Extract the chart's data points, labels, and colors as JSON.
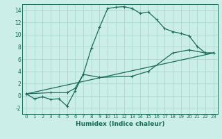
{
  "xlabel": "Humidex (Indice chaleur)",
  "bg_color": "#cceee8",
  "line_color": "#1a6b5a",
  "grid_color": "#aad8d0",
  "xlim": [
    -0.5,
    23.5
  ],
  "ylim": [
    -3,
    15
  ],
  "yticks": [
    -2,
    0,
    2,
    4,
    6,
    8,
    10,
    12,
    14
  ],
  "xticks": [
    0,
    1,
    2,
    3,
    4,
    5,
    6,
    7,
    8,
    9,
    10,
    11,
    12,
    13,
    14,
    15,
    16,
    17,
    18,
    19,
    20,
    21,
    22,
    23
  ],
  "line1_x": [
    0,
    1,
    2,
    3,
    4,
    5,
    6,
    7,
    8,
    9,
    10,
    11,
    12,
    13,
    14,
    15,
    16,
    17,
    18,
    19,
    20,
    21,
    22,
    23
  ],
  "line1_y": [
    0.3,
    -0.5,
    -0.2,
    -0.6,
    -0.5,
    -1.7,
    0.8,
    3.5,
    7.8,
    11.2,
    14.3,
    14.5,
    14.6,
    14.3,
    13.5,
    13.7,
    12.5,
    11.0,
    10.5,
    10.2,
    9.8,
    8.1,
    7.0,
    7.0
  ],
  "line2_x": [
    0,
    3,
    5,
    6,
    7,
    9,
    13,
    15,
    18,
    20,
    22,
    23
  ],
  "line2_y": [
    0.3,
    0.5,
    0.5,
    1.2,
    3.5,
    3.0,
    3.2,
    4.0,
    7.0,
    7.5,
    7.0,
    7.0
  ],
  "line3_x": [
    0,
    23
  ],
  "line3_y": [
    0.3,
    7.0
  ]
}
